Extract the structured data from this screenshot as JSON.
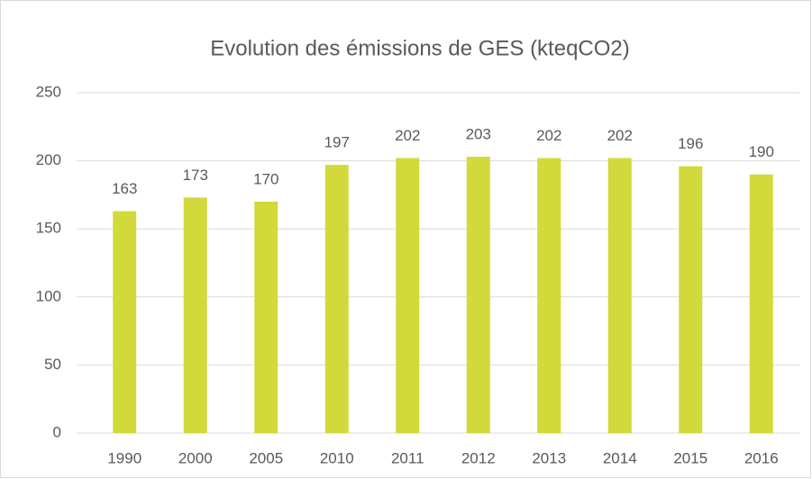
{
  "chart_data": {
    "type": "bar",
    "title": "Evolution des émissions de GES (kteqCO2)",
    "categories": [
      "1990",
      "2000",
      "2005",
      "2010",
      "2011",
      "2012",
      "2013",
      "2014",
      "2015",
      "2016"
    ],
    "values": [
      163,
      173,
      170,
      197,
      202,
      203,
      202,
      202,
      196,
      190
    ],
    "color": "#d1d93b",
    "ylim": [
      0,
      250
    ],
    "yticks": [
      0,
      50,
      100,
      150,
      200,
      250
    ],
    "grid": true,
    "data_labels": true
  }
}
